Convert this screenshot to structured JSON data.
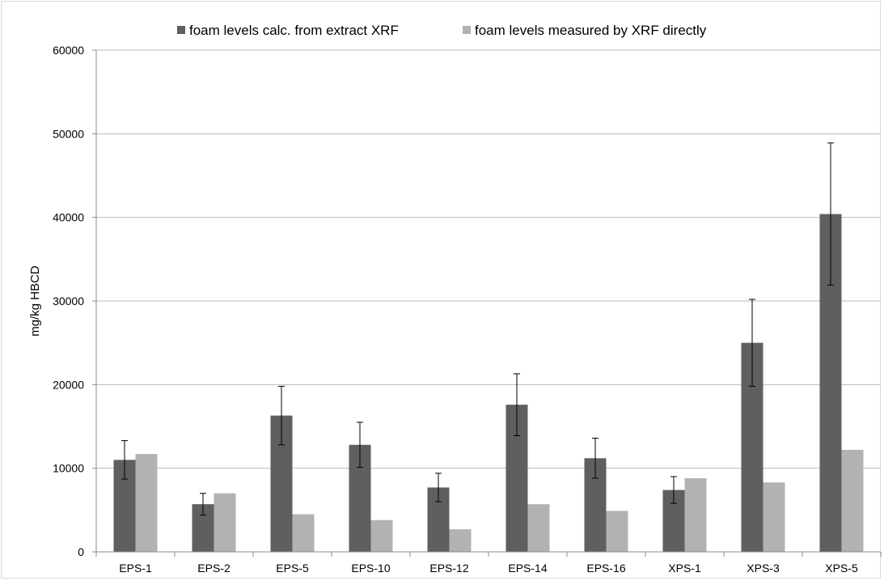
{
  "chart_data": {
    "type": "bar",
    "title": "",
    "xlabel": "",
    "ylabel": "mg/kg HBCD",
    "ylim": [
      0,
      60000
    ],
    "yticks": [
      0,
      10000,
      20000,
      30000,
      40000,
      50000,
      60000
    ],
    "grid": "horizontal",
    "legend_position": "top",
    "categories": [
      "EPS-1",
      "EPS-2",
      "EPS-5",
      "EPS-10",
      "EPS-12",
      "EPS-14",
      "EPS-16",
      "XPS-1",
      "XPS-3",
      "XPS-5"
    ],
    "series": [
      {
        "name": "foam levels calc. from extract XRF",
        "color": "#5f5f5f",
        "values": [
          11000,
          5700,
          16300,
          12800,
          7700,
          17600,
          11200,
          7400,
          25000,
          40400
        ],
        "error": [
          2300,
          1300,
          3500,
          2700,
          1700,
          3700,
          2400,
          1600,
          5200,
          8500
        ]
      },
      {
        "name": "foam levels measured by XRF directly",
        "color": "#b2b2b2",
        "values": [
          11700,
          7000,
          4500,
          3800,
          2700,
          5700,
          4900,
          8800,
          8300,
          12200
        ]
      }
    ]
  }
}
